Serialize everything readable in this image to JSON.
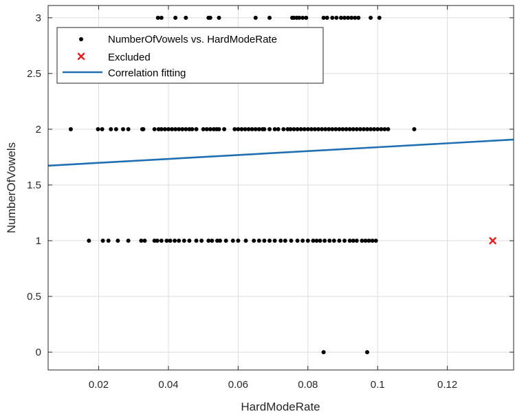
{
  "chart_data": {
    "type": "scatter",
    "xlabel": "HardModeRate",
    "ylabel": "NumberOfVowels",
    "xlim": [
      0.0055,
      0.139
    ],
    "ylim": [
      -0.16,
      3.11
    ],
    "xticks": [
      0.02,
      0.04,
      0.06,
      0.08,
      0.1,
      0.12
    ],
    "xtick_labels": [
      "0.02",
      "0.04",
      "0.06",
      "0.08",
      "0.1",
      "0.12"
    ],
    "yticks": [
      0,
      0.5,
      1,
      1.5,
      2,
      2.5,
      3
    ],
    "ytick_labels": [
      "0",
      "0.5",
      "1",
      "1.5",
      "2",
      "2.5",
      "3"
    ],
    "grid": true,
    "legend_position": "top-left",
    "colors": {
      "points": "#000000",
      "excluded": "#e8191c",
      "fit": "#1f6fb2",
      "axis": "#262626",
      "grid": "#dcdcdc"
    },
    "series": [
      {
        "name": "NumberOfVowels vs. HardModeRate",
        "kind": "points",
        "marker": "dot",
        "x": [
          0.037,
          0.038,
          0.042,
          0.045,
          0.0515,
          0.052,
          0.0545,
          0.065,
          0.069,
          0.0755,
          0.076,
          0.0768,
          0.0775,
          0.0785,
          0.0795,
          0.0845,
          0.0855,
          0.087,
          0.0882,
          0.0895,
          0.0905,
          0.0915,
          0.0925,
          0.0935,
          0.0945,
          0.098,
          0.1005,
          0.012,
          0.0198,
          0.021,
          0.0235,
          0.025,
          0.027,
          0.0285,
          0.0325,
          0.0328,
          0.036,
          0.0372,
          0.038,
          0.039,
          0.04,
          0.041,
          0.042,
          0.043,
          0.044,
          0.045,
          0.046,
          0.0468,
          0.048,
          0.05,
          0.051,
          0.052,
          0.053,
          0.0538,
          0.0545,
          0.056,
          0.059,
          0.06,
          0.061,
          0.062,
          0.063,
          0.064,
          0.065,
          0.066,
          0.067,
          0.0675,
          0.069,
          0.0705,
          0.0715,
          0.073,
          0.0742,
          0.075,
          0.076,
          0.077,
          0.078,
          0.079,
          0.08,
          0.081,
          0.082,
          0.083,
          0.084,
          0.085,
          0.086,
          0.087,
          0.088,
          0.089,
          0.09,
          0.091,
          0.092,
          0.093,
          0.094,
          0.095,
          0.096,
          0.097,
          0.098,
          0.099,
          0.1,
          0.101,
          0.102,
          0.103,
          0.1105,
          0.0172,
          0.0212,
          0.0228,
          0.0255,
          0.0285,
          0.0322,
          0.0332,
          0.036,
          0.0368,
          0.038,
          0.0395,
          0.0405,
          0.0418,
          0.043,
          0.0445,
          0.046,
          0.048,
          0.0495,
          0.0515,
          0.0525,
          0.054,
          0.0548,
          0.0565,
          0.0585,
          0.06,
          0.0622,
          0.0645,
          0.066,
          0.0675,
          0.069,
          0.0705,
          0.0722,
          0.0735,
          0.0752,
          0.077,
          0.0785,
          0.08,
          0.0815,
          0.0825,
          0.0835,
          0.0848,
          0.0862,
          0.0875,
          0.089,
          0.0905,
          0.092,
          0.093,
          0.094,
          0.0955,
          0.0965,
          0.0975,
          0.0985,
          0.0995,
          0.0845,
          0.097
        ],
        "y": [
          3,
          3,
          3,
          3,
          3,
          3,
          3,
          3,
          3,
          3,
          3,
          3,
          3,
          3,
          3,
          3,
          3,
          3,
          3,
          3,
          3,
          3,
          3,
          3,
          3,
          3,
          3,
          2,
          2,
          2,
          2,
          2,
          2,
          2,
          2,
          2,
          2,
          2,
          2,
          2,
          2,
          2,
          2,
          2,
          2,
          2,
          2,
          2,
          2,
          2,
          2,
          2,
          2,
          2,
          2,
          2,
          2,
          2,
          2,
          2,
          2,
          2,
          2,
          2,
          2,
          2,
          2,
          2,
          2,
          2,
          2,
          2,
          2,
          2,
          2,
          2,
          2,
          2,
          2,
          2,
          2,
          2,
          2,
          2,
          2,
          2,
          2,
          2,
          2,
          2,
          2,
          2,
          2,
          2,
          2,
          2,
          2,
          2,
          2,
          2,
          2,
          1,
          1,
          1,
          1,
          1,
          1,
          1,
          1,
          1,
          1,
          1,
          1,
          1,
          1,
          1,
          1,
          1,
          1,
          1,
          1,
          1,
          1,
          1,
          1,
          1,
          1,
          1,
          1,
          1,
          1,
          1,
          1,
          1,
          1,
          1,
          1,
          1,
          1,
          1,
          1,
          1,
          1,
          1,
          1,
          1,
          1,
          1,
          1,
          1,
          1,
          1,
          1,
          1,
          0,
          0
        ]
      },
      {
        "name": "Excluded",
        "kind": "points",
        "marker": "x",
        "x": [
          0.133
        ],
        "y": [
          1
        ]
      },
      {
        "name": "Correlation fitting",
        "kind": "line",
        "x": [
          0.0055,
          0.139
        ],
        "y": [
          1.673,
          1.907
        ]
      }
    ]
  }
}
